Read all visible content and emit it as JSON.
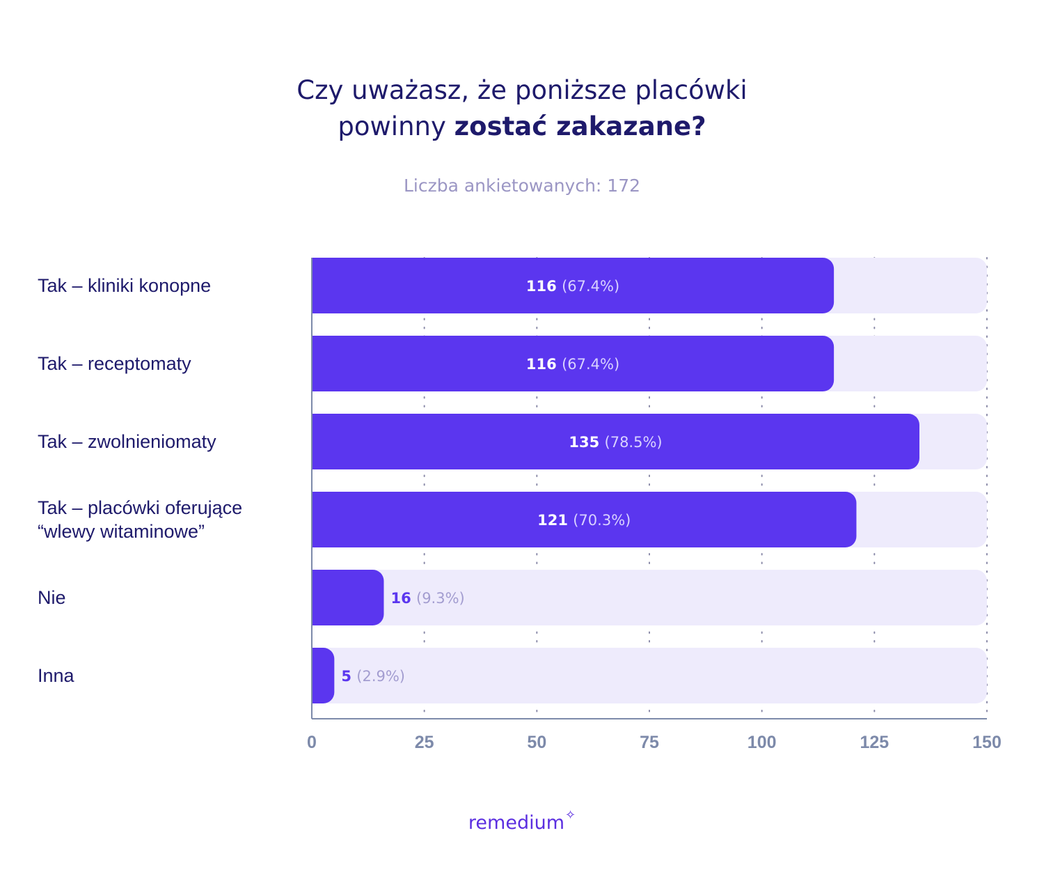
{
  "title": {
    "line1": "Czy uważasz, że poniższe placówki",
    "line2_prefix": "powinny",
    "line2_bold": "zostać zakazane?"
  },
  "subtitle": "Liczba ankietowanych: 172",
  "logo": {
    "text": "remedium",
    "icon": "sparkle-icon"
  },
  "colors": {
    "bar": "#5b36ef",
    "track": "#eeebfc",
    "text_dark": "#1e1a6b",
    "axis": "#7d8aaa",
    "label_muted": "#a39dd0"
  },
  "chart_data": {
    "type": "bar",
    "orientation": "horizontal",
    "categories": [
      [
        "Tak – kliniki konopne"
      ],
      [
        "Tak – receptomaty"
      ],
      [
        "Tak – zwolnieniomaty"
      ],
      [
        "Tak – placówki oferujące",
        "“wlewy witaminowe”"
      ],
      [
        "Nie"
      ],
      [
        "Inna"
      ]
    ],
    "values": [
      116,
      116,
      135,
      121,
      16,
      5
    ],
    "percent_labels": [
      "(67.4%)",
      "(67.4%)",
      "(78.5%)",
      "(70.3%)",
      "(9.3%)",
      "(2.9%)"
    ],
    "xlim": [
      0,
      150
    ],
    "xticks": [
      0,
      25,
      50,
      75,
      100,
      125,
      150
    ],
    "grid": "dotted-vertical",
    "title": "",
    "xlabel": "",
    "ylabel": ""
  }
}
